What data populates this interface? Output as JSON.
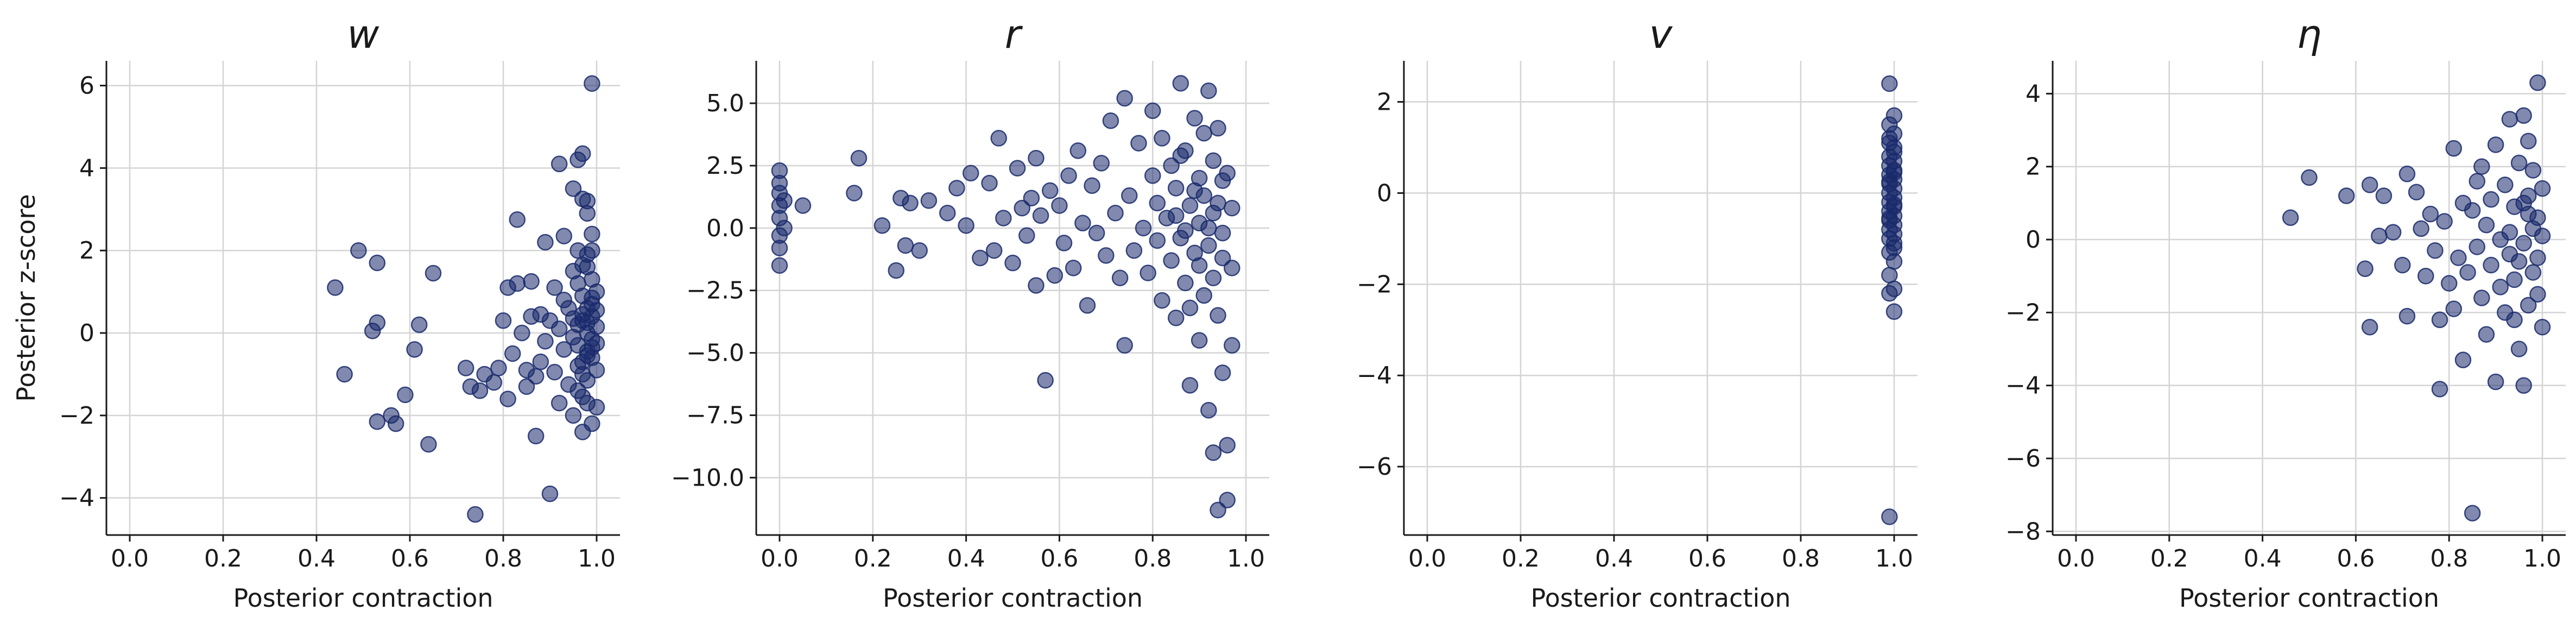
{
  "chart_data": [
    {
      "type": "scatter",
      "title": "w",
      "xlabel": "Posterior contraction",
      "ylabel": "Posterior z-score",
      "xlim": [
        -0.05,
        1.05
      ],
      "ylim": [
        -4.9,
        6.6
      ],
      "xticks": [
        0.0,
        0.2,
        0.4,
        0.6,
        0.8,
        1.0
      ],
      "xtick_labels": [
        "0.0",
        "0.2",
        "0.4",
        "0.6",
        "0.8",
        "1.0"
      ],
      "yticks": [
        -4,
        -2,
        0,
        2,
        4,
        6
      ],
      "ytick_labels": [
        "−4",
        "−2",
        "0",
        "2",
        "4",
        "6"
      ],
      "grid": true,
      "color": "#1a2a6c",
      "points": [
        [
          0.44,
          1.1
        ],
        [
          0.46,
          -1.0
        ],
        [
          0.49,
          2.0
        ],
        [
          0.52,
          0.05
        ],
        [
          0.53,
          0.25
        ],
        [
          0.53,
          1.7
        ],
        [
          0.53,
          -2.15
        ],
        [
          0.56,
          -2.0
        ],
        [
          0.57,
          -2.2
        ],
        [
          0.59,
          -1.5
        ],
        [
          0.61,
          -0.4
        ],
        [
          0.62,
          0.2
        ],
        [
          0.64,
          -2.7
        ],
        [
          0.65,
          1.45
        ],
        [
          0.72,
          -0.85
        ],
        [
          0.73,
          -1.3
        ],
        [
          0.74,
          -4.4
        ],
        [
          0.75,
          -1.4
        ],
        [
          0.76,
          -1.0
        ],
        [
          0.78,
          -1.2
        ],
        [
          0.79,
          -0.85
        ],
        [
          0.8,
          0.3
        ],
        [
          0.81,
          -1.6
        ],
        [
          0.81,
          1.1
        ],
        [
          0.82,
          -0.5
        ],
        [
          0.83,
          1.2
        ],
        [
          0.83,
          2.75
        ],
        [
          0.84,
          0.0
        ],
        [
          0.85,
          -1.3
        ],
        [
          0.85,
          -0.9
        ],
        [
          0.86,
          1.25
        ],
        [
          0.86,
          0.4
        ],
        [
          0.87,
          -1.05
        ],
        [
          0.87,
          -2.5
        ],
        [
          0.88,
          0.45
        ],
        [
          0.88,
          -0.7
        ],
        [
          0.89,
          2.2
        ],
        [
          0.89,
          -0.2
        ],
        [
          0.9,
          -3.9
        ],
        [
          0.9,
          0.3
        ],
        [
          0.91,
          -0.95
        ],
        [
          0.91,
          1.1
        ],
        [
          0.92,
          4.1
        ],
        [
          0.92,
          0.1
        ],
        [
          0.92,
          -1.7
        ],
        [
          0.93,
          2.35
        ],
        [
          0.93,
          -0.4
        ],
        [
          0.93,
          0.8
        ],
        [
          0.94,
          -1.25
        ],
        [
          0.94,
          0.6
        ],
        [
          0.95,
          3.5
        ],
        [
          0.95,
          -0.1
        ],
        [
          0.95,
          1.5
        ],
        [
          0.95,
          -2.0
        ],
        [
          0.96,
          4.2
        ],
        [
          0.96,
          0.2
        ],
        [
          0.96,
          -0.8
        ],
        [
          0.96,
          2.0
        ],
        [
          0.97,
          3.25
        ],
        [
          0.97,
          -2.4
        ],
        [
          0.97,
          4.35
        ],
        [
          0.97,
          0.9
        ],
        [
          0.97,
          -1.55
        ],
        [
          0.97,
          0.45
        ],
        [
          0.98,
          2.9
        ],
        [
          0.98,
          -0.55
        ],
        [
          0.98,
          1.6
        ],
        [
          0.98,
          0.0
        ],
        [
          0.98,
          -1.15
        ],
        [
          0.98,
          3.2
        ],
        [
          0.99,
          6.05
        ],
        [
          0.99,
          -2.2
        ],
        [
          0.99,
          0.7
        ],
        [
          0.99,
          -0.35
        ],
        [
          0.99,
          1.3
        ],
        [
          0.99,
          2.4
        ],
        [
          1.0,
          -1.8
        ],
        [
          1.0,
          0.15
        ],
        [
          1.0,
          1.0
        ],
        [
          1.0,
          -0.9
        ],
        [
          0.96,
          -0.3
        ],
        [
          0.97,
          0.3
        ],
        [
          0.98,
          0.6
        ],
        [
          0.99,
          -0.6
        ],
        [
          0.97,
          -1.0
        ],
        [
          0.98,
          1.9
        ],
        [
          0.99,
          0.4
        ],
        [
          0.96,
          1.2
        ],
        [
          0.98,
          -1.7
        ],
        [
          0.99,
          2.0
        ],
        [
          0.97,
          -0.7
        ],
        [
          0.98,
          0.25
        ],
        [
          0.99,
          -0.15
        ],
        [
          0.96,
          -1.4
        ],
        [
          0.97,
          1.65
        ],
        [
          0.98,
          -0.45
        ],
        [
          0.99,
          0.85
        ],
        [
          1.0,
          -0.25
        ],
        [
          1.0,
          0.55
        ],
        [
          0.95,
          0.35
        ]
      ]
    },
    {
      "type": "scatter",
      "title": "r",
      "xlabel": "Posterior contraction",
      "ylabel": "",
      "xlim": [
        -0.05,
        1.05
      ],
      "ylim": [
        -12.3,
        6.7
      ],
      "xticks": [
        0.0,
        0.2,
        0.4,
        0.6,
        0.8,
        1.0
      ],
      "xtick_labels": [
        "0.0",
        "0.2",
        "0.4",
        "0.6",
        "0.8",
        "1.0"
      ],
      "yticks": [
        -10.0,
        -7.5,
        -5.0,
        -2.5,
        0.0,
        2.5,
        5.0
      ],
      "ytick_labels": [
        "−10.0",
        "−7.5",
        "−5.0",
        "−2.5",
        "0.0",
        "2.5",
        "5.0"
      ],
      "grid": true,
      "color": "#1a2a6c",
      "points": [
        [
          0.0,
          2.3
        ],
        [
          0.0,
          1.8
        ],
        [
          0.0,
          1.4
        ],
        [
          0.0,
          0.9
        ],
        [
          0.0,
          0.4
        ],
        [
          0.0,
          -0.3
        ],
        [
          0.0,
          -0.8
        ],
        [
          0.0,
          -1.5
        ],
        [
          0.01,
          1.1
        ],
        [
          0.01,
          0.0
        ],
        [
          0.05,
          0.9
        ],
        [
          0.16,
          1.4
        ],
        [
          0.17,
          2.8
        ],
        [
          0.22,
          0.1
        ],
        [
          0.25,
          -1.7
        ],
        [
          0.26,
          1.2
        ],
        [
          0.27,
          -0.7
        ],
        [
          0.28,
          1.0
        ],
        [
          0.3,
          -0.9
        ],
        [
          0.32,
          1.1
        ],
        [
          0.36,
          0.6
        ],
        [
          0.38,
          1.6
        ],
        [
          0.4,
          0.1
        ],
        [
          0.41,
          2.2
        ],
        [
          0.43,
          -1.2
        ],
        [
          0.45,
          1.8
        ],
        [
          0.46,
          -0.9
        ],
        [
          0.47,
          3.6
        ],
        [
          0.48,
          0.4
        ],
        [
          0.5,
          -1.4
        ],
        [
          0.51,
          2.4
        ],
        [
          0.52,
          0.8
        ],
        [
          0.53,
          -0.3
        ],
        [
          0.54,
          1.2
        ],
        [
          0.55,
          2.8
        ],
        [
          0.55,
          -2.3
        ],
        [
          0.56,
          0.5
        ],
        [
          0.57,
          -6.1
        ],
        [
          0.58,
          1.5
        ],
        [
          0.59,
          -1.9
        ],
        [
          0.6,
          0.9
        ],
        [
          0.61,
          -0.6
        ],
        [
          0.62,
          2.1
        ],
        [
          0.63,
          -1.6
        ],
        [
          0.64,
          3.1
        ],
        [
          0.65,
          0.2
        ],
        [
          0.66,
          -3.1
        ],
        [
          0.67,
          1.7
        ],
        [
          0.68,
          -0.2
        ],
        [
          0.69,
          2.6
        ],
        [
          0.7,
          -1.1
        ],
        [
          0.71,
          4.3
        ],
        [
          0.72,
          0.6
        ],
        [
          0.73,
          -2.0
        ],
        [
          0.74,
          5.2
        ],
        [
          0.74,
          -4.7
        ],
        [
          0.75,
          1.3
        ],
        [
          0.76,
          -0.9
        ],
        [
          0.77,
          3.4
        ],
        [
          0.78,
          0.0
        ],
        [
          0.79,
          -1.8
        ],
        [
          0.8,
          4.7
        ],
        [
          0.8,
          2.1
        ],
        [
          0.81,
          -0.5
        ],
        [
          0.81,
          1.0
        ],
        [
          0.82,
          -2.9
        ],
        [
          0.82,
          3.6
        ],
        [
          0.83,
          0.4
        ],
        [
          0.84,
          -1.3
        ],
        [
          0.84,
          2.5
        ],
        [
          0.85,
          -3.6
        ],
        [
          0.85,
          1.6
        ],
        [
          0.86,
          5.8
        ],
        [
          0.86,
          -0.4
        ],
        [
          0.87,
          3.1
        ],
        [
          0.87,
          -2.2
        ],
        [
          0.88,
          0.9
        ],
        [
          0.88,
          -6.3
        ],
        [
          0.89,
          4.4
        ],
        [
          0.89,
          -1.0
        ],
        [
          0.9,
          2.0
        ],
        [
          0.9,
          -4.5
        ],
        [
          0.9,
          0.2
        ],
        [
          0.91,
          3.8
        ],
        [
          0.91,
          -2.7
        ],
        [
          0.91,
          1.3
        ],
        [
          0.92,
          -0.7
        ],
        [
          0.92,
          5.5
        ],
        [
          0.92,
          -7.3
        ],
        [
          0.93,
          2.7
        ],
        [
          0.93,
          -9.0
        ],
        [
          0.93,
          0.6
        ],
        [
          0.94,
          -3.5
        ],
        [
          0.94,
          4.0
        ],
        [
          0.94,
          -11.3
        ],
        [
          0.95,
          1.9
        ],
        [
          0.95,
          -5.8
        ],
        [
          0.95,
          -0.2
        ],
        [
          0.96,
          -8.7
        ],
        [
          0.96,
          -10.9
        ],
        [
          0.96,
          2.2
        ],
        [
          0.97,
          -4.7
        ],
        [
          0.97,
          -1.6
        ],
        [
          0.97,
          0.8
        ],
        [
          0.85,
          0.5
        ],
        [
          0.87,
          -0.1
        ],
        [
          0.89,
          1.5
        ],
        [
          0.9,
          -1.5
        ],
        [
          0.92,
          0.0
        ],
        [
          0.93,
          -2.0
        ],
        [
          0.94,
          1.0
        ],
        [
          0.95,
          -1.2
        ],
        [
          0.86,
          2.9
        ],
        [
          0.88,
          -3.2
        ]
      ]
    },
    {
      "type": "scatter",
      "title": "v",
      "xlabel": "Posterior contraction",
      "ylabel": "",
      "xlim": [
        -0.05,
        1.05
      ],
      "ylim": [
        -7.5,
        2.9
      ],
      "xticks": [
        0.0,
        0.2,
        0.4,
        0.6,
        0.8,
        1.0
      ],
      "xtick_labels": [
        "0.0",
        "0.2",
        "0.4",
        "0.6",
        "0.8",
        "1.0"
      ],
      "yticks": [
        -6,
        -4,
        -2,
        0,
        2
      ],
      "ytick_labels": [
        "−6",
        "−4",
        "−2",
        "0",
        "2"
      ],
      "grid": true,
      "color": "#1a2a6c",
      "points": [
        [
          0.99,
          2.4
        ],
        [
          1.0,
          1.7
        ],
        [
          0.99,
          1.5
        ],
        [
          1.0,
          1.3
        ],
        [
          0.99,
          1.1
        ],
        [
          1.0,
          0.9
        ],
        [
          0.99,
          0.8
        ],
        [
          1.0,
          0.7
        ],
        [
          0.99,
          0.6
        ],
        [
          1.0,
          0.5
        ],
        [
          0.99,
          0.4
        ],
        [
          1.0,
          0.3
        ],
        [
          0.99,
          0.2
        ],
        [
          1.0,
          0.1
        ],
        [
          0.99,
          0.0
        ],
        [
          1.0,
          -0.1
        ],
        [
          0.99,
          -0.2
        ],
        [
          1.0,
          -0.3
        ],
        [
          0.99,
          -0.4
        ],
        [
          1.0,
          -0.5
        ],
        [
          0.99,
          -0.6
        ],
        [
          1.0,
          -0.7
        ],
        [
          0.99,
          -0.8
        ],
        [
          1.0,
          -0.9
        ],
        [
          0.99,
          -1.0
        ],
        [
          1.0,
          -1.1
        ],
        [
          0.99,
          -1.3
        ],
        [
          1.0,
          -1.5
        ],
        [
          0.99,
          -1.8
        ],
        [
          1.0,
          -2.1
        ],
        [
          0.99,
          -2.2
        ],
        [
          1.0,
          -2.6
        ],
        [
          0.99,
          -7.1
        ],
        [
          1.0,
          1.0
        ],
        [
          0.99,
          0.25
        ],
        [
          1.0,
          -0.25
        ],
        [
          0.99,
          -0.55
        ],
        [
          1.0,
          0.45
        ],
        [
          0.99,
          1.2
        ],
        [
          1.0,
          -1.2
        ]
      ]
    },
    {
      "type": "scatter",
      "title": "η",
      "xlabel": "Posterior contraction",
      "ylabel": "",
      "xlim": [
        -0.05,
        1.05
      ],
      "ylim": [
        -8.1,
        4.9
      ],
      "xticks": [
        0.0,
        0.2,
        0.4,
        0.6,
        0.8,
        1.0
      ],
      "xtick_labels": [
        "0.0",
        "0.2",
        "0.4",
        "0.6",
        "0.8",
        "1.0"
      ],
      "yticks": [
        -8,
        -6,
        -4,
        -2,
        0,
        2,
        4
      ],
      "ytick_labels": [
        "−8",
        "−6",
        "−4",
        "−2",
        "0",
        "2",
        "4"
      ],
      "grid": true,
      "color": "#1a2a6c",
      "points": [
        [
          0.46,
          0.6
        ],
        [
          0.5,
          1.7
        ],
        [
          0.58,
          1.2
        ],
        [
          0.62,
          -0.8
        ],
        [
          0.63,
          1.5
        ],
        [
          0.63,
          -2.4
        ],
        [
          0.65,
          0.1
        ],
        [
          0.66,
          1.2
        ],
        [
          0.68,
          0.2
        ],
        [
          0.7,
          -0.7
        ],
        [
          0.71,
          1.8
        ],
        [
          0.71,
          -2.1
        ],
        [
          0.73,
          1.3
        ],
        [
          0.74,
          0.3
        ],
        [
          0.75,
          -1.0
        ],
        [
          0.76,
          0.7
        ],
        [
          0.77,
          -0.3
        ],
        [
          0.78,
          -2.2
        ],
        [
          0.78,
          -4.1
        ],
        [
          0.79,
          0.5
        ],
        [
          0.8,
          -1.2
        ],
        [
          0.81,
          2.5
        ],
        [
          0.81,
          -1.9
        ],
        [
          0.82,
          -0.5
        ],
        [
          0.83,
          1.0
        ],
        [
          0.83,
          -3.3
        ],
        [
          0.84,
          -0.9
        ],
        [
          0.85,
          -7.5
        ],
        [
          0.85,
          0.8
        ],
        [
          0.86,
          1.6
        ],
        [
          0.86,
          -0.2
        ],
        [
          0.87,
          -1.6
        ],
        [
          0.87,
          2.0
        ],
        [
          0.88,
          -2.6
        ],
        [
          0.88,
          0.4
        ],
        [
          0.89,
          -0.7
        ],
        [
          0.89,
          1.1
        ],
        [
          0.9,
          -3.9
        ],
        [
          0.9,
          2.6
        ],
        [
          0.91,
          -1.3
        ],
        [
          0.91,
          0.0
        ],
        [
          0.92,
          1.5
        ],
        [
          0.92,
          -2.0
        ],
        [
          0.93,
          3.3
        ],
        [
          0.93,
          -0.4
        ],
        [
          0.94,
          0.9
        ],
        [
          0.94,
          -1.1
        ],
        [
          0.95,
          2.1
        ],
        [
          0.95,
          -3.0
        ],
        [
          0.96,
          3.4
        ],
        [
          0.96,
          -0.1
        ],
        [
          0.96,
          -4.0
        ],
        [
          0.97,
          1.2
        ],
        [
          0.97,
          -1.8
        ],
        [
          0.97,
          2.7
        ],
        [
          0.98,
          0.3
        ],
        [
          0.98,
          -0.9
        ],
        [
          0.98,
          1.9
        ],
        [
          0.99,
          4.3
        ],
        [
          0.99,
          -1.5
        ],
        [
          0.99,
          0.6
        ],
        [
          0.99,
          -0.5
        ],
        [
          1.0,
          1.4
        ],
        [
          1.0,
          -2.4
        ],
        [
          1.0,
          0.1
        ],
        [
          0.93,
          0.2
        ],
        [
          0.95,
          -0.6
        ],
        [
          0.97,
          0.7
        ],
        [
          0.94,
          -2.2
        ],
        [
          0.96,
          1.0
        ]
      ]
    }
  ]
}
